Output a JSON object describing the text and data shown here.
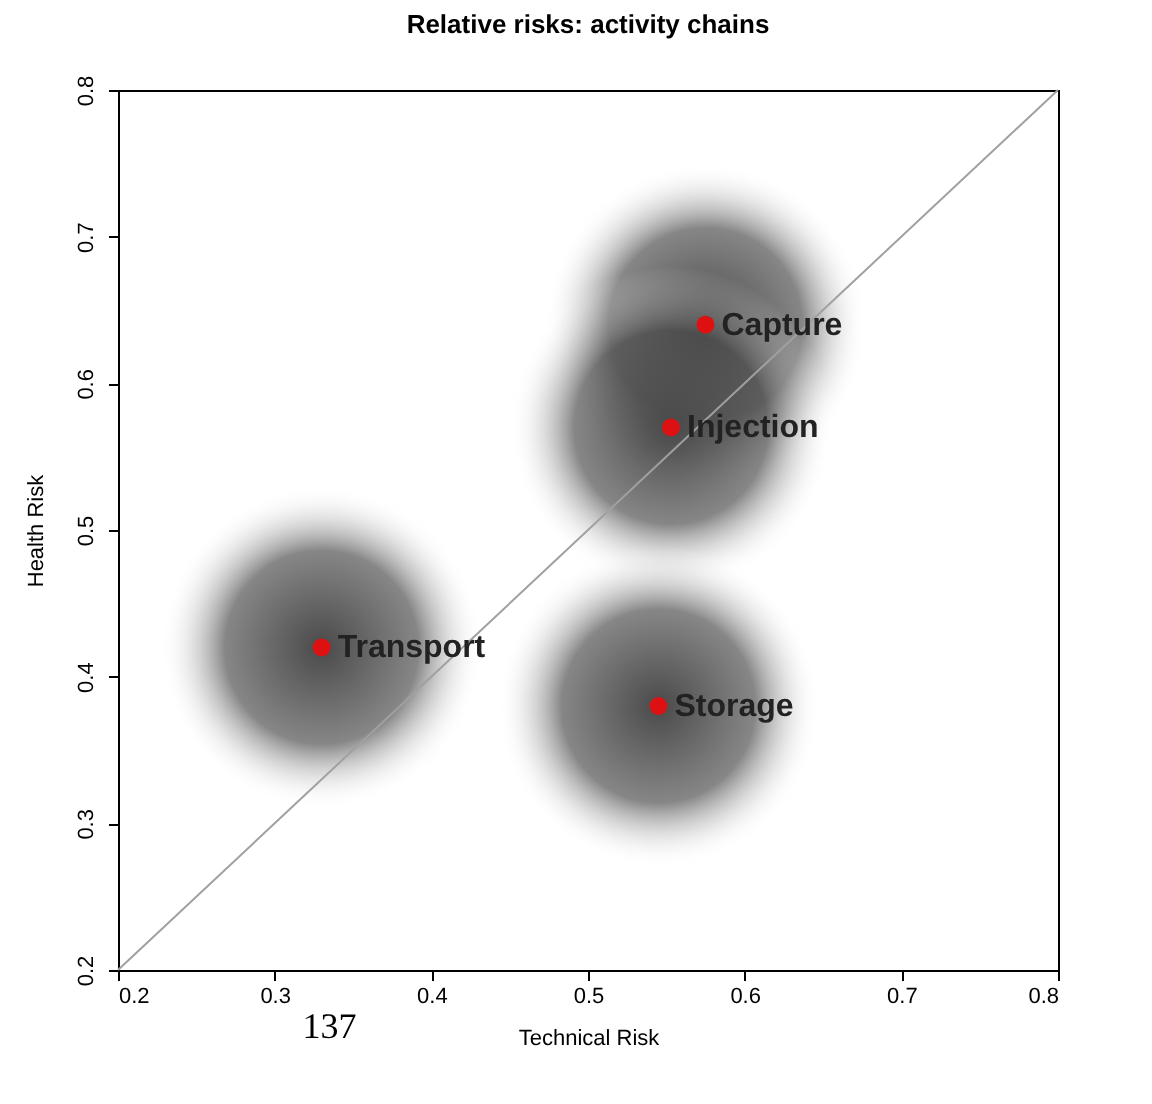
{
  "chart_data": {
    "type": "scatter",
    "title": "Relative risks: activity chains",
    "xlabel": "Technical Risk",
    "ylabel": "Health Risk",
    "xlim": [
      0.2,
      0.8
    ],
    "ylim": [
      0.2,
      0.8
    ],
    "xticks": [
      0.2,
      0.3,
      0.4,
      0.5,
      0.6,
      0.7,
      0.8
    ],
    "yticks": [
      0.2,
      0.3,
      0.4,
      0.5,
      0.6,
      0.7,
      0.8
    ],
    "grid": false,
    "legend": false,
    "series": [
      {
        "type": "bubble",
        "color": "#4a4a4a",
        "x": [
          0.33,
          0.575,
          0.553,
          0.545
        ],
        "values": [
          0.42,
          0.64,
          0.57,
          0.38
        ],
        "sizes": [
          1,
          1,
          1,
          1
        ]
      },
      {
        "type": "line",
        "color": "#a0a0a0",
        "x": [
          0.2,
          0.8
        ],
        "values": [
          0.2,
          0.8
        ]
      },
      {
        "color": "#dd1111",
        "x": [
          0.33,
          0.575,
          0.553,
          0.545
        ],
        "values": [
          0.42,
          0.64,
          0.57,
          0.38
        ]
      }
    ],
    "annotations": [
      {
        "text": "Transport",
        "x": 0.33,
        "y": 0.42
      },
      {
        "text": "Capture",
        "x": 0.575,
        "y": 0.64
      },
      {
        "text": "Injection",
        "x": 0.553,
        "y": 0.57
      },
      {
        "text": "Storage",
        "x": 0.545,
        "y": 0.38
      },
      "137"
    ]
  }
}
